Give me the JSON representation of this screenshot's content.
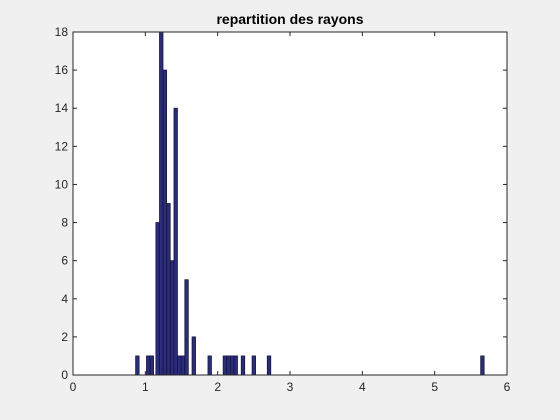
{
  "chart_data": {
    "type": "bar",
    "subtype": "histogram",
    "title": "repartition des rayons",
    "xlabel": "",
    "ylabel": "",
    "xlim": [
      0,
      6
    ],
    "ylim": [
      0,
      18
    ],
    "xticks": [
      "0",
      "1",
      "2",
      "3",
      "4",
      "5",
      "6"
    ],
    "yticks": [
      "0",
      "2",
      "4",
      "6",
      "8",
      "10",
      "12",
      "14",
      "16",
      "18"
    ],
    "grid": false,
    "legend": "none",
    "bar_color": "#2c2c7e",
    "bar_edge_color": "#161640",
    "axes_background": "#ffffff",
    "figure_background": "#f0f0f0",
    "bin_width": 0.048,
    "bins": [
      {
        "x": 0.89,
        "y": 1
      },
      {
        "x": 1.04,
        "y": 1
      },
      {
        "x": 1.09,
        "y": 1
      },
      {
        "x": 1.17,
        "y": 8
      },
      {
        "x": 1.22,
        "y": 18
      },
      {
        "x": 1.27,
        "y": 16
      },
      {
        "x": 1.32,
        "y": 9
      },
      {
        "x": 1.37,
        "y": 6
      },
      {
        "x": 1.42,
        "y": 14
      },
      {
        "x": 1.47,
        "y": 1
      },
      {
        "x": 1.52,
        "y": 1
      },
      {
        "x": 1.57,
        "y": 5
      },
      {
        "x": 1.67,
        "y": 2
      },
      {
        "x": 1.89,
        "y": 1
      },
      {
        "x": 2.1,
        "y": 1
      },
      {
        "x": 2.15,
        "y": 1
      },
      {
        "x": 2.2,
        "y": 1
      },
      {
        "x": 2.25,
        "y": 1
      },
      {
        "x": 2.35,
        "y": 1
      },
      {
        "x": 2.5,
        "y": 1
      },
      {
        "x": 2.71,
        "y": 1
      },
      {
        "x": 5.66,
        "y": 1
      }
    ]
  }
}
